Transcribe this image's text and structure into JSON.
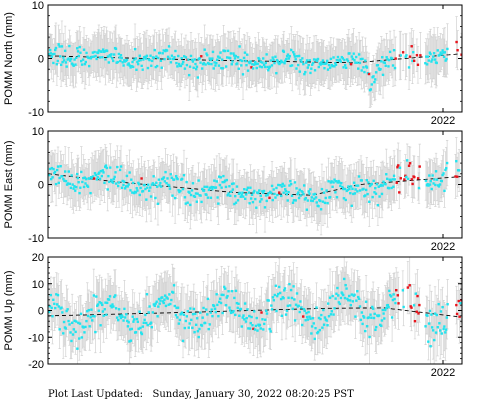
{
  "footer": "Plot Last Updated:   Sunday, January 30, 2022 08:20:25 PST",
  "colors": {
    "obs": "#22e3ee",
    "recent": "#e8141c",
    "errorbar": "#d2d2d2",
    "trend": "#000000",
    "axis": "#000000"
  },
  "chart_data": [
    {
      "type": "scatter",
      "ylabel": "POMM North (mm)",
      "xlim": [
        2015.35,
        2022.32
      ],
      "ylim": [
        -10,
        10
      ],
      "yticks": [
        10,
        0,
        -10
      ],
      "xtick_labels": [
        {
          "x": 2022.0,
          "label": "2022"
        }
      ],
      "trend": {
        "x": [
          2015.35,
          2018.0,
          2020.5,
          2022.32
        ],
        "y": [
          0.5,
          -0.3,
          -0.8,
          0.9
        ]
      },
      "seasonal_amp": 0.6,
      "noise": 1.0,
      "error": 4.0,
      "anomalies": [
        {
          "x": [
            2020.7,
            2020.9
          ],
          "dy": -3.5
        }
      ],
      "recent_x": [
        2021.2,
        2021.62
      ],
      "recent_x2": [
        2022.17,
        2022.32
      ],
      "seed": 11
    },
    {
      "type": "scatter",
      "ylabel": "POMM East (mm)",
      "xlim": [
        2015.35,
        2022.32
      ],
      "ylim": [
        -10,
        10
      ],
      "yticks": [
        10,
        0,
        -10
      ],
      "xtick_labels": [
        {
          "x": 2022.0,
          "label": "2022"
        }
      ],
      "trend": {
        "x": [
          2015.35,
          2016.5,
          2018.5,
          2019.8,
          2020.6,
          2022.32
        ],
        "y": [
          2.0,
          0.5,
          -1.5,
          -2.0,
          0.0,
          1.5
        ]
      },
      "seasonal_amp": 1.0,
      "noise": 1.1,
      "error": 4.0,
      "anomalies": [
        {
          "x": [
            2020.25,
            2020.55
          ],
          "dy": -2.5
        }
      ],
      "recent_x": [
        2021.2,
        2021.62
      ],
      "recent_x2": [
        2022.17,
        2022.32
      ],
      "seed": 23
    },
    {
      "type": "scatter",
      "ylabel": "POMM Up (mm)",
      "xlim": [
        2015.35,
        2022.32
      ],
      "ylim": [
        -20,
        20
      ],
      "yticks": [
        20,
        10,
        0,
        -10,
        -20
      ],
      "xtick_labels": [
        {
          "x": 2022.0,
          "label": "2022"
        }
      ],
      "trend": {
        "x": [
          2015.35,
          2017.5,
          2020.0,
          2021.0,
          2022.32
        ],
        "y": [
          -2.0,
          -0.8,
          0.8,
          1.0,
          -2.5
        ]
      },
      "seasonal_amp": 5.0,
      "noise": 3.2,
      "error": 9.0,
      "anomalies": [],
      "recent_x": [
        2021.2,
        2021.62
      ],
      "recent_x2": [
        2022.17,
        2022.32
      ],
      "seed": 37
    }
  ]
}
